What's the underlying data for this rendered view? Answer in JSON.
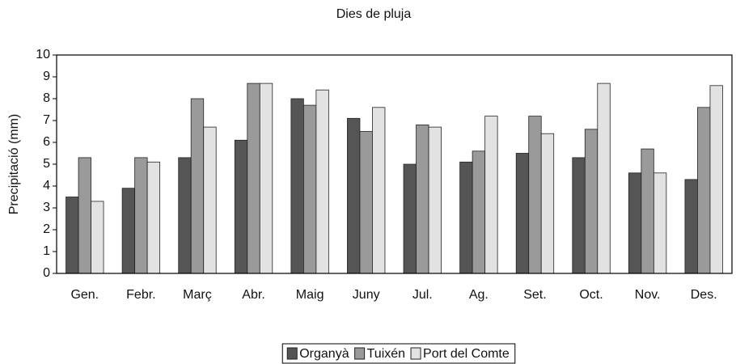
{
  "chart_data": {
    "type": "bar",
    "title": "Dies de pluja",
    "y_label": "Precipitació (mm)",
    "categories": [
      "Gen.",
      "Febr.",
      "Març",
      "Abr.",
      "Maig",
      "Juny",
      "Jul.",
      "Ag.",
      "Set.",
      "Oct.",
      "Nov.",
      "Des."
    ],
    "series": [
      {
        "name": "Organyà",
        "color": "#555555",
        "values": [
          3.5,
          3.9,
          5.3,
          6.1,
          8.0,
          7.1,
          5.0,
          5.1,
          5.5,
          5.3,
          4.6,
          4.3
        ]
      },
      {
        "name": "Tuixén",
        "color": "#9a9a9a",
        "values": [
          5.3,
          5.3,
          8.0,
          8.7,
          7.7,
          6.5,
          6.8,
          5.6,
          7.2,
          6.6,
          5.7,
          7.6
        ]
      },
      {
        "name": "Port del Comte",
        "color": "#e2e2e2",
        "values": [
          3.3,
          5.1,
          6.7,
          8.7,
          8.4,
          7.6,
          6.7,
          7.2,
          6.4,
          8.7,
          4.6,
          8.6
        ]
      }
    ],
    "ylim": [
      0,
      10
    ],
    "yticks": [
      0,
      1,
      2,
      3,
      4,
      5,
      6,
      7,
      8,
      9,
      10
    ],
    "grid": false,
    "legend": "bottom"
  }
}
